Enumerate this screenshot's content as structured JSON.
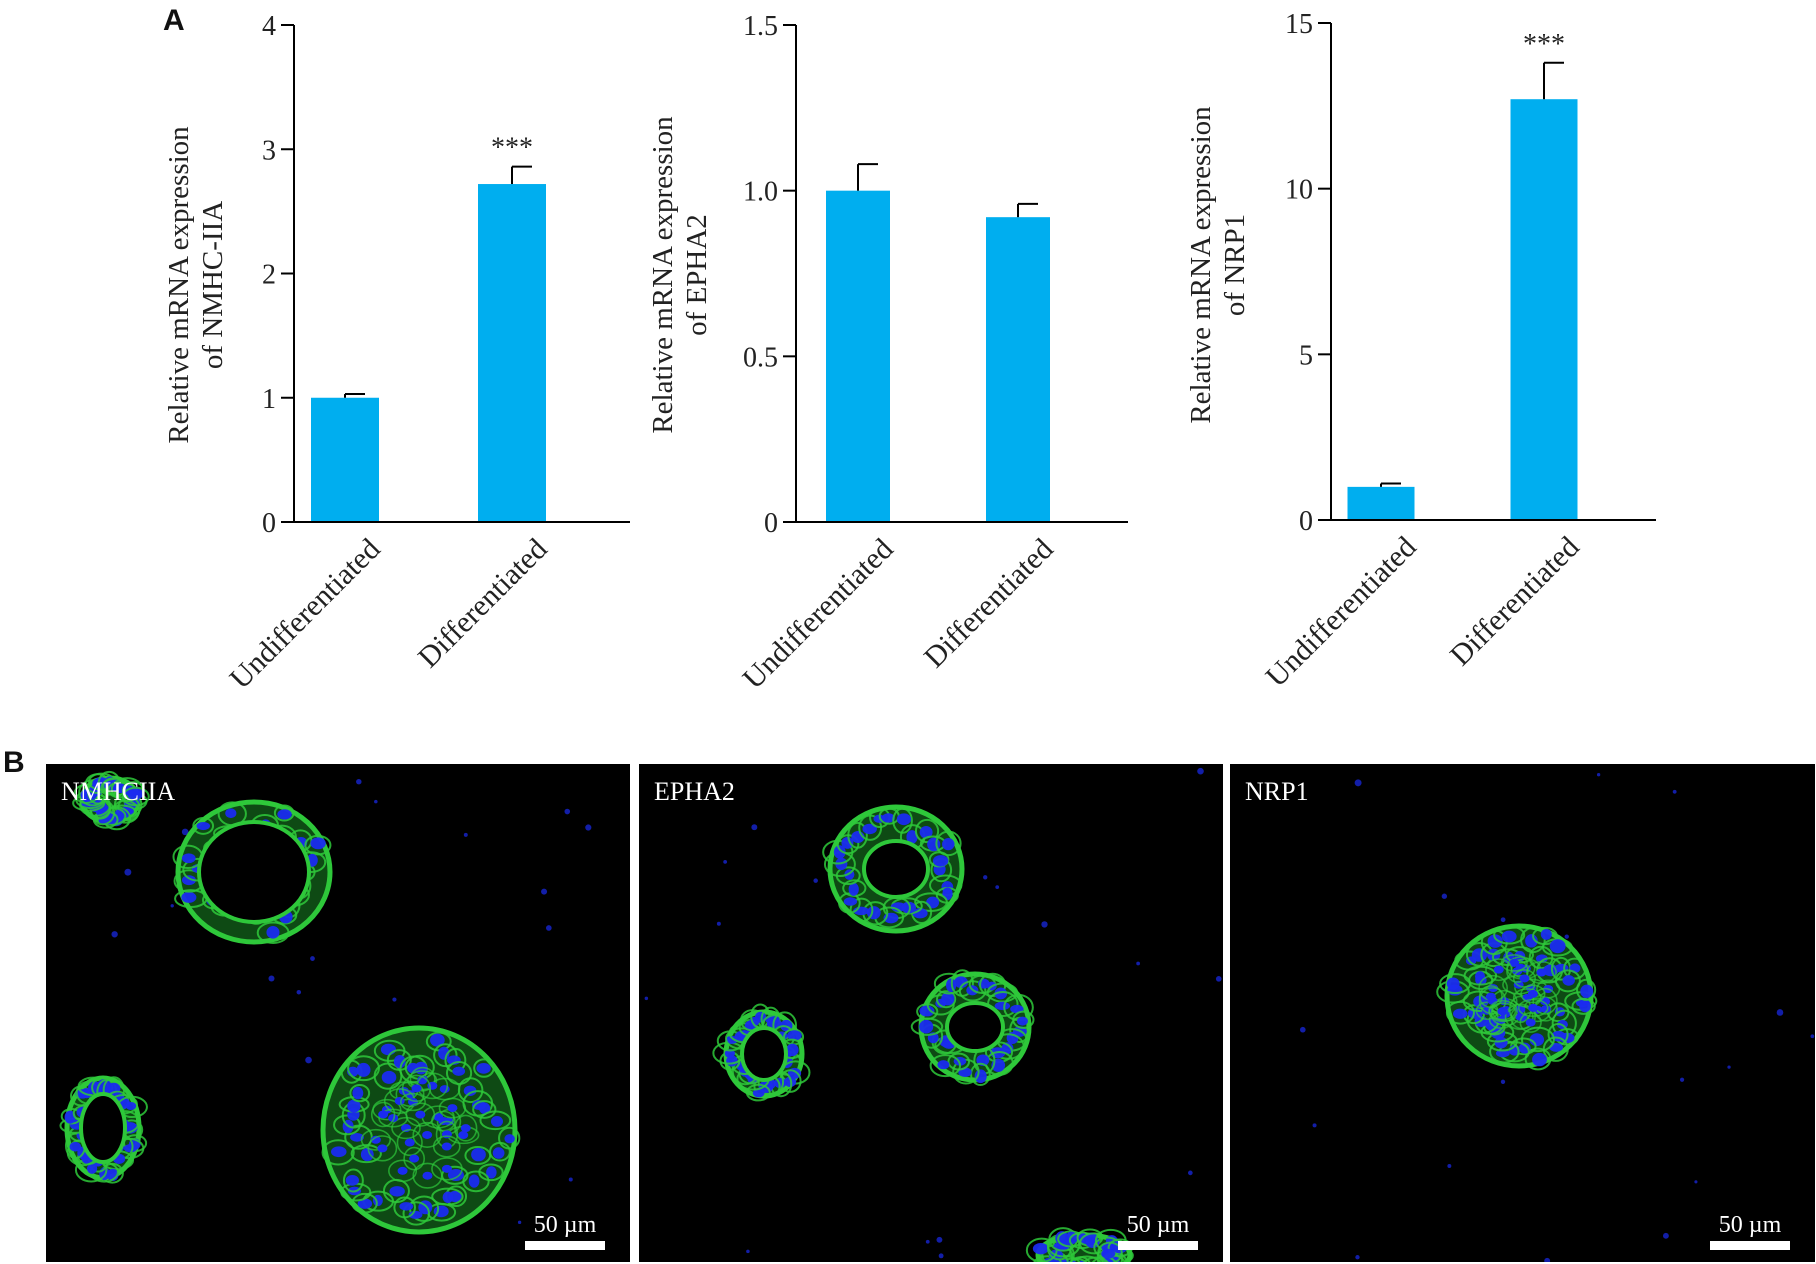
{
  "figure": {
    "panel_a_label": "A",
    "panel_b_label": "B"
  },
  "colors": {
    "bar": "#00AEEF",
    "axis": "#000000",
    "micro_bg": "#000000",
    "membrane": "#2EC83A",
    "nuclei": "#1A2BEF",
    "scale_bar": "#ffffff"
  },
  "chart_data": [
    {
      "type": "bar",
      "ylabel_lines": [
        "Relative mRNA expression",
        "of NMHC-IIA"
      ],
      "categories": [
        "Undifferentiated",
        "Differentiated"
      ],
      "values": [
        1.0,
        2.72
      ],
      "errors": [
        0.03,
        0.14
      ],
      "annotations": [
        "",
        "***"
      ],
      "ylim": [
        0,
        4
      ],
      "yticks": [
        0,
        1,
        2,
        3,
        4
      ],
      "ytick_labels": [
        "0",
        "1",
        "2",
        "3",
        "4"
      ]
    },
    {
      "type": "bar",
      "ylabel_lines": [
        "Relative mRNA expression",
        "of EPHA2"
      ],
      "categories": [
        "Undifferentiated",
        "Differentiated"
      ],
      "values": [
        1.0,
        0.92
      ],
      "errors": [
        0.08,
        0.04
      ],
      "annotations": [
        "",
        ""
      ],
      "ylim": [
        0,
        1.5
      ],
      "yticks": [
        0,
        0.5,
        1.0,
        1.5
      ],
      "ytick_labels": [
        "0",
        "0.5",
        "1.0",
        "1.5"
      ]
    },
    {
      "type": "bar",
      "ylabel_lines": [
        "Relative mRNA expression",
        "of NRP1"
      ],
      "categories": [
        "Undifferentiated",
        "Differentiated"
      ],
      "values": [
        1.0,
        12.7
      ],
      "errors": [
        0.1,
        1.1
      ],
      "annotations": [
        "",
        "***"
      ],
      "ylim": [
        0,
        15
      ],
      "yticks": [
        0,
        5,
        10,
        15
      ],
      "ytick_labels": [
        "0",
        "5",
        "10",
        "15"
      ]
    }
  ],
  "micrographs": [
    {
      "label": "NMHCIIA",
      "scale_text": "50 µm"
    },
    {
      "label": "EPHA2",
      "scale_text": "50 µm"
    },
    {
      "label": "NRP1",
      "scale_text": "50 µm"
    }
  ]
}
